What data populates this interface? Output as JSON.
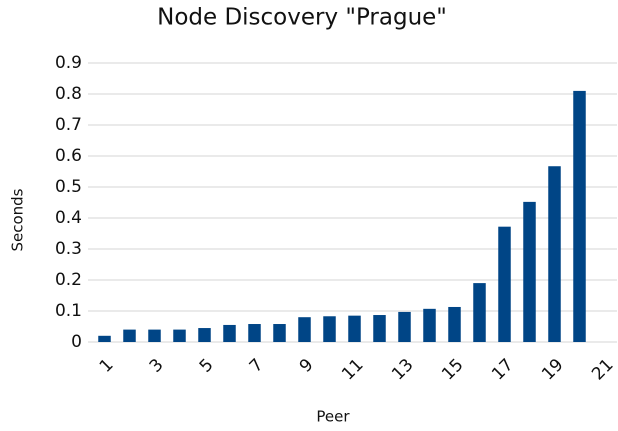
{
  "chart_data": {
    "type": "bar",
    "title": "Node Discovery \"Prague\"",
    "x_label": "Peer",
    "y_label": "Seconds",
    "categories": [
      "1",
      null,
      "3",
      null,
      "5",
      null,
      "7",
      null,
      "9",
      null,
      "11",
      null,
      "13",
      null,
      "15",
      null,
      "17",
      null,
      "19",
      null,
      "21"
    ],
    "values": [
      0.02,
      0.04,
      0.04,
      0.04,
      0.045,
      0.055,
      0.058,
      0.058,
      0.08,
      0.083,
      0.085,
      0.087,
      0.097,
      0.107,
      0.113,
      0.19,
      0.372,
      0.452,
      0.567,
      0.81,
      null
    ],
    "color": "#004586",
    "ylim": [
      0,
      0.9
    ],
    "yticks": [
      0,
      0.1,
      0.2,
      0.3,
      0.4,
      0.5,
      0.6,
      0.7,
      0.8,
      0.9
    ],
    "grid": true
  }
}
